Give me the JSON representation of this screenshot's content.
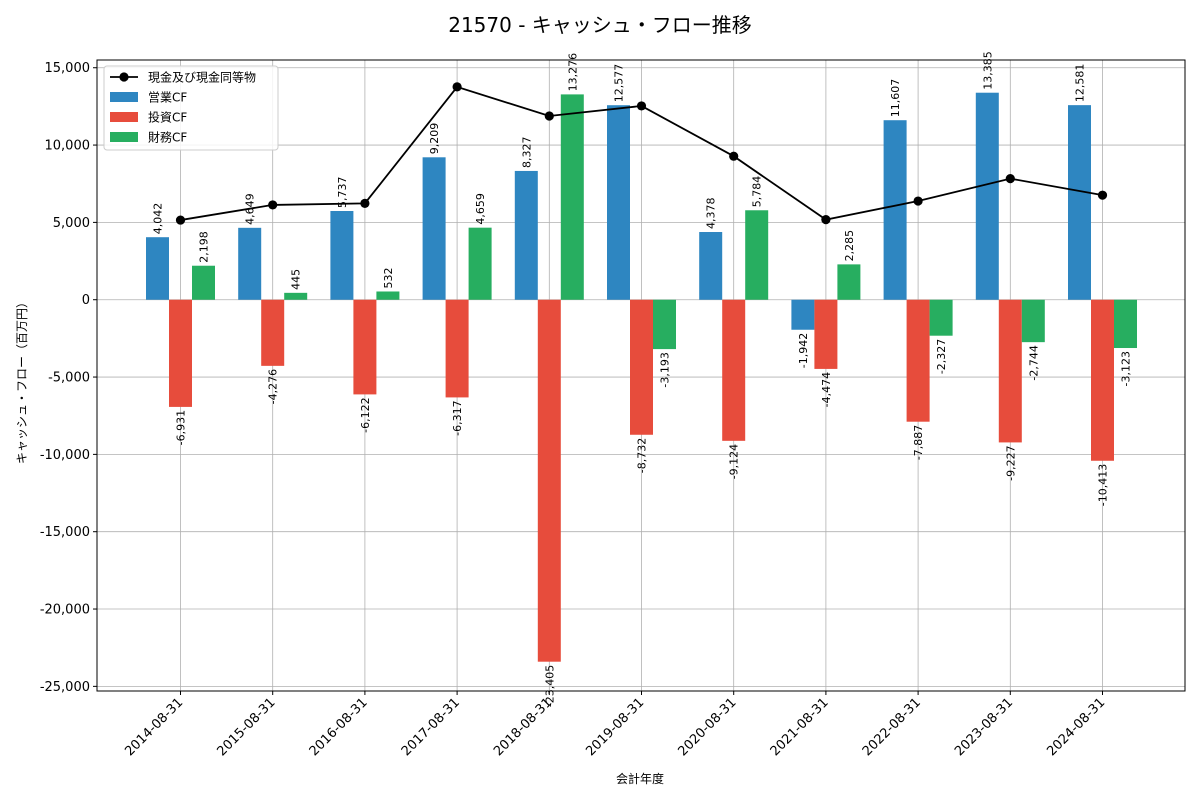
{
  "chart_data": {
    "type": "bar",
    "title": "21570 - キャッシュ・フロー推移",
    "xlabel": "会計年度",
    "ylabel": "キャッシュ・フロー（百万円）",
    "ylim": [
      -25300,
      15500
    ],
    "yticks": [
      15000,
      10000,
      5000,
      0,
      -5000,
      -10000,
      -15000,
      -20000,
      -25000
    ],
    "ytick_labels": [
      "15,000",
      "10,000",
      "5,000",
      "0",
      "-5,000",
      "-10,000",
      "-15,000",
      "-20,000",
      "-25,000"
    ],
    "grid": true,
    "legend_position": "top-left",
    "categories": [
      "2014-08-31",
      "2015-08-31",
      "2016-08-31",
      "2017-08-31",
      "2018-08-31",
      "2019-08-31",
      "2020-08-31",
      "2021-08-31",
      "2022-08-31",
      "2023-08-31",
      "2024-08-31"
    ],
    "series": [
      {
        "name": "営業CF",
        "kind": "bar",
        "color": "#2e86c1",
        "values": [
          4042,
          4649,
          5737,
          9209,
          8327,
          12577,
          4378,
          -1942,
          11607,
          13385,
          12581
        ],
        "labels": [
          "4,042",
          "4,649",
          "5,737",
          "9,209",
          "8,327",
          "12,577",
          "4,378",
          "-1,942",
          "11,607",
          "13,385",
          "12,581"
        ]
      },
      {
        "name": "投資CF",
        "kind": "bar",
        "color": "#e74c3c",
        "values": [
          -6931,
          -4276,
          -6122,
          -6317,
          -23405,
          -8732,
          -9124,
          -4474,
          -7887,
          -9227,
          -10413
        ],
        "labels": [
          "-6,931",
          "-4,276",
          "-6,122",
          "-6,317",
          "-23,405",
          "-8,732",
          "-9,124",
          "-4,474",
          "-7,887",
          "-9,227",
          "-10,413"
        ]
      },
      {
        "name": "財務CF",
        "kind": "bar",
        "color": "#27ae60",
        "values": [
          2198,
          445,
          532,
          4659,
          13276,
          -3193,
          5784,
          2285,
          -2327,
          -2744,
          -3123
        ],
        "labels": [
          "2,198",
          "445",
          "532",
          "4,659",
          "13,276",
          "-3,193",
          "5,784",
          "2,285",
          "-2,327",
          "-2,744",
          "-3,123"
        ]
      },
      {
        "name": "現金及び現金同等物",
        "kind": "line",
        "color": "#000000",
        "values": [
          5150,
          6130,
          6230,
          13760,
          11880,
          12530,
          9280,
          5180,
          6380,
          7830,
          6760
        ]
      }
    ]
  }
}
